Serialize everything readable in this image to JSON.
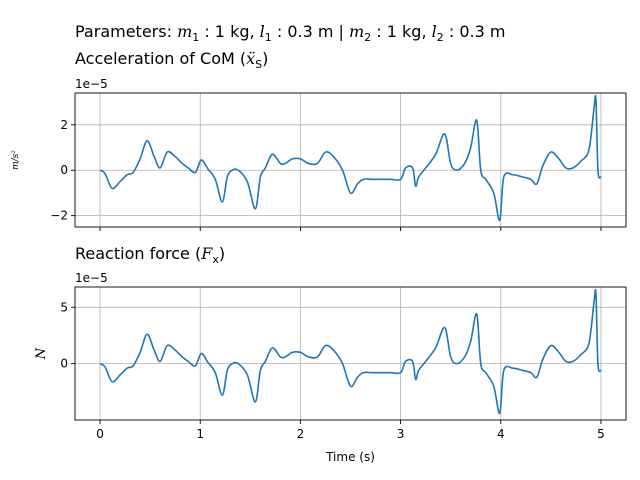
{
  "figure": {
    "suptitle": {
      "prefix": "Parameters: ",
      "m1_sym": "m",
      "m1_sub": "1",
      "m1_val": " :  1 kg, ",
      "l1_sym": "l",
      "l1_sub": "1",
      "l1_val": " :  0.3 m | ",
      "m2_sym": "m",
      "m2_sub": "2",
      "m2_val": " :  1 kg, ",
      "l2_sym": "l",
      "l2_sub": "2",
      "l2_val": " :  0.3 m"
    },
    "line_color": "#1f77b4"
  },
  "chart_data": [
    {
      "type": "line",
      "title_text": "Acceleration of CoM (",
      "title_sym": "ẍ",
      "title_sub": "S",
      "title_end": ")",
      "ylabel": "m/s²",
      "xlabel": "",
      "offset_text": "1e−5",
      "xlim": [
        -0.25,
        5.25
      ],
      "ylim": [
        -2.5,
        3.4
      ],
      "xticks": [
        0,
        1,
        2,
        3,
        4,
        5
      ],
      "yticks": [
        -2,
        0,
        2
      ],
      "ytick_labels": [
        "−2",
        "0",
        "2"
      ],
      "grid": true,
      "series": [
        {
          "x": [
            0,
            0.05,
            0.12,
            0.2,
            0.27,
            0.33,
            0.4,
            0.47,
            0.54,
            0.6,
            0.67,
            0.75,
            0.82,
            0.88,
            0.95,
            1.0,
            1.03,
            1.07,
            1.15,
            1.22,
            1.27,
            1.32,
            1.38,
            1.47,
            1.55,
            1.6,
            1.65,
            1.72,
            1.8,
            1.85,
            1.92,
            2.0,
            2.08,
            2.17,
            2.25,
            2.33,
            2.42,
            2.5,
            2.57,
            2.63,
            2.72,
            2.8,
            2.9,
            3.0,
            3.05,
            3.12,
            3.15,
            3.18,
            3.25,
            3.35,
            3.44,
            3.5,
            3.56,
            3.64,
            3.7,
            3.76,
            3.8,
            3.85,
            3.93,
            3.99,
            4.03,
            4.12,
            4.22,
            4.3,
            4.36,
            4.42,
            4.5,
            4.58,
            4.65,
            4.72,
            4.8,
            4.88,
            4.93,
            4.95,
            4.97,
            5.0
          ],
          "y": [
            0.0,
            -0.15,
            -0.8,
            -0.5,
            -0.2,
            -0.1,
            0.5,
            1.3,
            0.6,
            0.1,
            0.8,
            0.6,
            0.3,
            0.1,
            -0.1,
            0.4,
            0.4,
            0.1,
            -0.4,
            -1.4,
            -0.3,
            0.0,
            0.0,
            -0.5,
            -1.7,
            -0.3,
            0.1,
            0.7,
            0.3,
            0.3,
            0.5,
            0.5,
            0.3,
            0.3,
            0.8,
            0.6,
            0.0,
            -1.0,
            -0.6,
            -0.4,
            -0.4,
            -0.4,
            -0.4,
            -0.4,
            0.1,
            0.1,
            -0.7,
            -0.3,
            0.1,
            0.7,
            1.6,
            0.3,
            0.0,
            0.3,
            1.0,
            2.2,
            0.0,
            -0.4,
            -1.0,
            -2.2,
            -0.3,
            -0.2,
            -0.3,
            -0.4,
            -0.6,
            0.2,
            0.8,
            0.5,
            0.1,
            0.1,
            0.4,
            0.9,
            2.7,
            3.1,
            0.0,
            -0.3
          ]
        }
      ]
    },
    {
      "type": "line",
      "title_text": "Reaction force (",
      "title_sym": "F",
      "title_sub": "x",
      "title_end": ")",
      "ylabel": "N",
      "xlabel": "Time (s)",
      "offset_text": "1e−5",
      "xlim": [
        -0.25,
        5.25
      ],
      "ylim": [
        -5.0,
        6.8
      ],
      "xticks": [
        0,
        1,
        2,
        3,
        4,
        5
      ],
      "xtick_labels": [
        "0",
        "1",
        "2",
        "3",
        "4",
        "5"
      ],
      "yticks": [
        0,
        5
      ],
      "ytick_labels": [
        "0",
        "5"
      ],
      "grid": true,
      "series": [
        {
          "x": [
            0,
            0.05,
            0.12,
            0.2,
            0.27,
            0.33,
            0.4,
            0.47,
            0.54,
            0.6,
            0.67,
            0.75,
            0.82,
            0.88,
            0.95,
            1.0,
            1.03,
            1.07,
            1.15,
            1.22,
            1.27,
            1.32,
            1.38,
            1.47,
            1.55,
            1.6,
            1.65,
            1.72,
            1.8,
            1.85,
            1.92,
            2.0,
            2.08,
            2.17,
            2.25,
            2.33,
            2.42,
            2.5,
            2.57,
            2.63,
            2.72,
            2.8,
            2.9,
            3.0,
            3.05,
            3.12,
            3.15,
            3.18,
            3.25,
            3.35,
            3.44,
            3.5,
            3.56,
            3.64,
            3.7,
            3.76,
            3.8,
            3.85,
            3.93,
            3.99,
            4.03,
            4.12,
            4.22,
            4.3,
            4.36,
            4.42,
            4.5,
            4.58,
            4.65,
            4.72,
            4.8,
            4.88,
            4.93,
            4.95,
            4.97,
            5.0
          ],
          "y": [
            0.0,
            -0.3,
            -1.6,
            -1.0,
            -0.4,
            -0.2,
            1.0,
            2.6,
            1.2,
            0.2,
            1.6,
            1.2,
            0.6,
            0.2,
            -0.2,
            0.8,
            0.8,
            0.2,
            -0.8,
            -2.8,
            -0.6,
            0.0,
            0.0,
            -1.0,
            -3.4,
            -0.6,
            0.2,
            1.4,
            0.6,
            0.6,
            1.0,
            1.0,
            0.6,
            0.6,
            1.6,
            1.2,
            0.0,
            -2.0,
            -1.2,
            -0.8,
            -0.8,
            -0.8,
            -0.8,
            -0.8,
            0.2,
            0.2,
            -1.4,
            -0.6,
            0.2,
            1.4,
            3.2,
            0.6,
            0.0,
            0.6,
            2.0,
            4.4,
            0.0,
            -0.8,
            -2.0,
            -4.4,
            -0.6,
            -0.4,
            -0.6,
            -0.8,
            -1.2,
            0.4,
            1.6,
            1.0,
            0.2,
            0.2,
            0.8,
            1.8,
            5.4,
            6.2,
            0.0,
            -0.6
          ]
        }
      ]
    }
  ]
}
